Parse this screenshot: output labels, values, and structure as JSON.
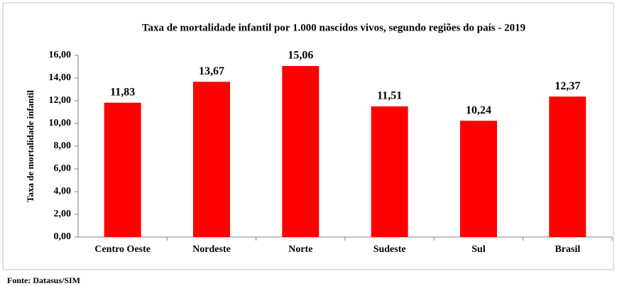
{
  "chart_data": {
    "type": "bar",
    "title": "Taxa de mortalidade infantil por 1.000 nascidos vivos, segundo regiões do país - 2019",
    "y_label": "Taxa de mortalidade infantil",
    "source": "Fonte: Datasus/SIM",
    "categories": [
      "Centro Oeste",
      "Nordeste",
      "Norte",
      "Sudeste",
      "Sul",
      "Brasil"
    ],
    "values": [
      11.83,
      13.67,
      15.06,
      11.51,
      10.24,
      12.37
    ],
    "value_labels": [
      "11,83",
      "13,67",
      "15,06",
      "11,51",
      "10,24",
      "12,37"
    ],
    "color": "#ff0000",
    "ylim": [
      0,
      16
    ],
    "yticks": [
      {
        "value": 0,
        "label": "0,00"
      },
      {
        "value": 2,
        "label": "2,00"
      },
      {
        "value": 4,
        "label": "4,00"
      },
      {
        "value": 6,
        "label": "6,00"
      },
      {
        "value": 8,
        "label": "8,00"
      },
      {
        "value": 10,
        "label": "10,00"
      },
      {
        "value": 12,
        "label": "12,00"
      },
      {
        "value": 14,
        "label": "14,00"
      },
      {
        "value": 16,
        "label": "16,00"
      }
    ],
    "grid": false
  }
}
